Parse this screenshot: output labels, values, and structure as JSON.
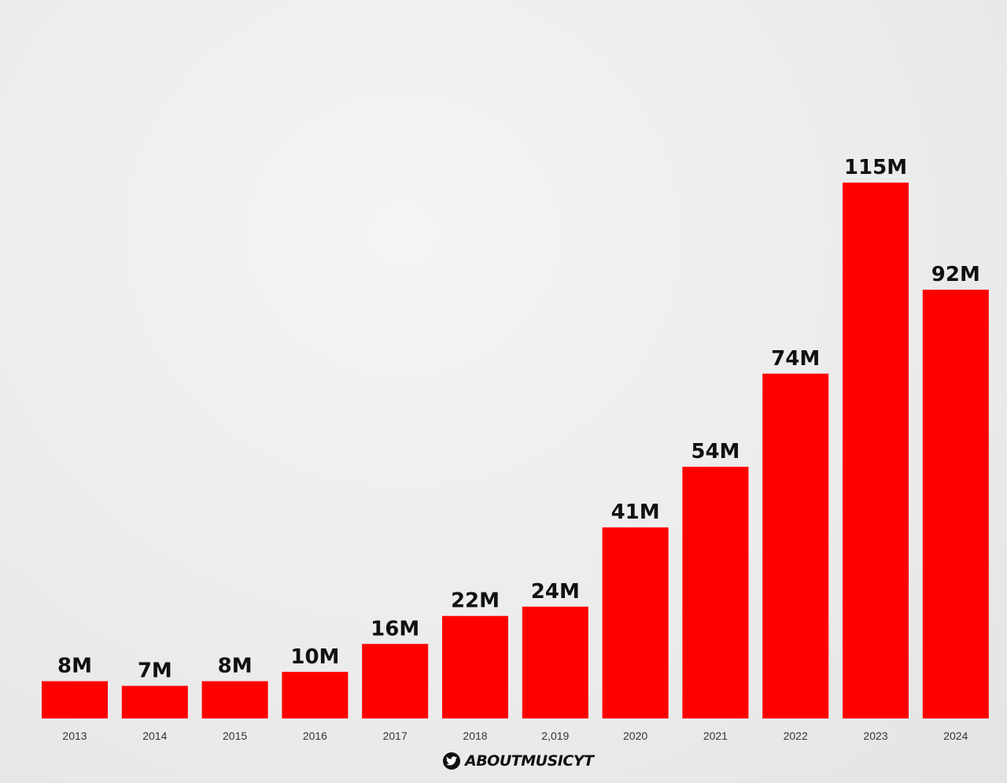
{
  "chart_data": {
    "type": "bar",
    "title": "",
    "xlabel": "",
    "ylabel": "",
    "categories": [
      "2013",
      "2014",
      "2015",
      "2016",
      "2017",
      "2018",
      "2,019",
      "2020",
      "2021",
      "2022",
      "2023",
      "2024"
    ],
    "values": [
      8,
      7,
      8,
      10,
      16,
      22,
      24,
      41,
      54,
      74,
      115,
      92
    ],
    "data_labels": [
      "8M",
      "7M",
      "8M",
      "10M",
      "16M",
      "22M",
      "24M",
      "41M",
      "54M",
      "74M",
      "115M",
      "92M"
    ],
    "unit": "M",
    "ylim": [
      0,
      115
    ],
    "grid": false,
    "bar_color": "#ff0000"
  },
  "footer": {
    "handle": "ABOUTMUSICYT",
    "icon": "twitter-icon"
  }
}
